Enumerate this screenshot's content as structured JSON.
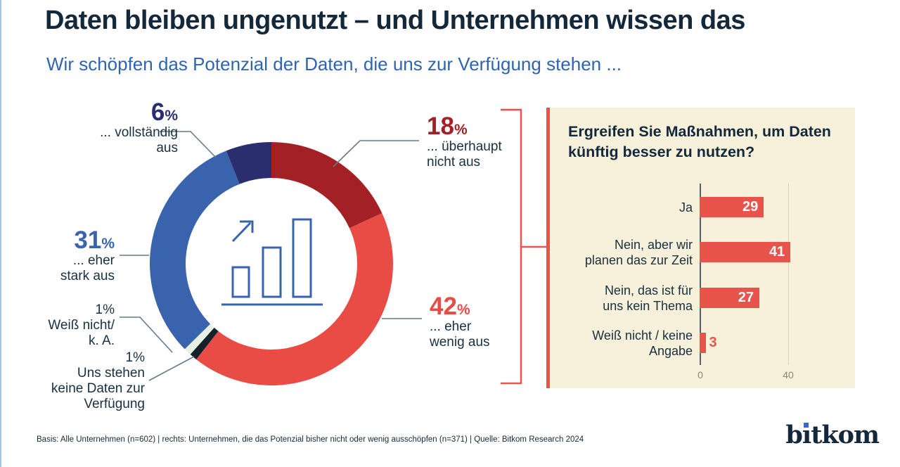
{
  "page": {
    "title": "Daten bleiben ungenutzt – und Unternehmen wissen das",
    "subtitle": "Wir schöpfen das Potenzial der Daten, die uns zur Verfügung stehen ...",
    "footer": "Basis: Alle Unternehmen (n=602) | rechts: Unternehmen, die das Potenzial bisher nicht oder wenig ausschöpfen (n=371) | Quelle: Bitkom Research 2024",
    "logo": {
      "text": "bitkom",
      "pre": "b",
      "i": "ı",
      "post": "tkom"
    }
  },
  "colors": {
    "title": "#13283a",
    "subtitle": "#2d64b5",
    "label_text": "#18303f",
    "panel_bg": "#f7f0da",
    "accent_red": "#e8544c",
    "leader_line": "#64798a",
    "axis": "#55616c",
    "gridline": "#d9d1ba",
    "tick_text": "#8b8678",
    "bar_value_text": "#ffffff",
    "logo_dot": "#3d63d9",
    "donut": {
      "dark_red": "#a32025",
      "red": "#e84c44",
      "black": "#15222b",
      "light": "#e6efe2",
      "blue": "#3a63ae",
      "navy": "#2b2e6e"
    }
  },
  "donut": {
    "callouts": [
      {
        "value": "6",
        "suffix": "%",
        "lines": [
          "... vollständig",
          "aus"
        ]
      },
      {
        "value": "18",
        "suffix": "%",
        "lines": [
          "... überhaupt",
          "nicht aus"
        ]
      },
      {
        "value": "31",
        "suffix": "%",
        "lines": [
          "... eher",
          "stark aus"
        ]
      },
      {
        "value": "42",
        "suffix": "%",
        "lines": [
          "... eher",
          "wenig aus"
        ]
      },
      {
        "value": "1",
        "suffix": "%",
        "lines": [
          "Weiß nicht/",
          "k. A."
        ]
      },
      {
        "value": "1",
        "suffix": "%",
        "lines": [
          "Uns stehen",
          "keine Daten zur",
          "Verfügung"
        ]
      }
    ]
  },
  "chart_data": [
    {
      "type": "pie",
      "subtype": "donut",
      "question": "Wir schöpfen das Potenzial der Daten, die uns zur Verfügung stehen ...",
      "unit": "%",
      "segments_clockwise_from_top": [
        {
          "label": "... überhaupt nicht aus",
          "value": 18,
          "color": "#a32025"
        },
        {
          "label": "... eher wenig aus",
          "value": 42,
          "color": "#e84c44"
        },
        {
          "label": "Uns stehen keine Daten zur Verfügung",
          "value": 1,
          "color": "#15222b"
        },
        {
          "label": "Weiß nicht/ k. A.",
          "value": 1,
          "color": "#e6efe2"
        },
        {
          "label": "... eher stark aus",
          "value": 31,
          "color": "#3a63ae"
        },
        {
          "label": "... vollständig aus",
          "value": 6,
          "color": "#2b2e6e"
        }
      ]
    },
    {
      "type": "bar",
      "orientation": "horizontal",
      "title": "Ergreifen Sie Maßnahmen, um Daten künftig besser zu nutzen?",
      "xlim": [
        0,
        40
      ],
      "xticks": [
        "0",
        "40"
      ],
      "bar_color": "#e8544c",
      "categories": [
        "Ja",
        "Nein, aber wir planen das zur Zeit",
        "Nein, das ist für uns kein Thema",
        "Weiß nicht / keine Angabe"
      ],
      "values": [
        29,
        41,
        27,
        3
      ],
      "rows": [
        {
          "label_lines": [
            "Ja"
          ],
          "value": 29
        },
        {
          "label_lines": [
            "Nein, aber wir",
            "planen das zur Zeit"
          ],
          "value": 41
        },
        {
          "label_lines": [
            "Nein, das ist für",
            "uns kein Thema"
          ],
          "value": 27
        },
        {
          "label_lines": [
            "Weiß nicht / keine",
            "Angabe"
          ],
          "value": 3
        }
      ]
    }
  ]
}
